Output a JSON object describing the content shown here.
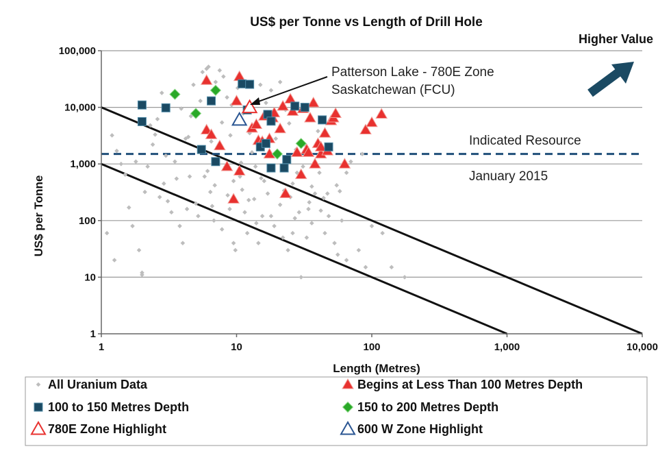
{
  "chart_data": {
    "type": "scatter",
    "title": "US$ per Tonne vs Length of Drill Hole",
    "xlabel": "Length (Metres)",
    "ylabel": "US$ per Tonne",
    "x_scale": "log",
    "y_scale": "log",
    "xlim": [
      1,
      10000
    ],
    "ylim": [
      1,
      100000
    ],
    "x_ticks": [
      "1",
      "10",
      "100",
      "1,000",
      "10,000"
    ],
    "x_tick_values": [
      1,
      10,
      100,
      1000,
      10000
    ],
    "y_ticks": [
      "1",
      "10",
      "100",
      "1,000",
      "10,000",
      "100,000"
    ],
    "y_tick_values": [
      1,
      10,
      100,
      1000,
      10000,
      100000
    ],
    "grid": "horizontal",
    "legend_position": "bottom",
    "reference_lines": [
      {
        "points": [
          [
            1,
            10000
          ],
          [
            10000,
            1
          ]
        ],
        "style": "solid"
      },
      {
        "points": [
          [
            1,
            1000
          ],
          [
            1000,
            1
          ]
        ],
        "style": "solid"
      }
    ],
    "indicated_resource": {
      "y": 1500,
      "label_top": "Indicated Resource",
      "label_bottom": "January 2015"
    },
    "higher_value": {
      "label": "Higher Value"
    },
    "annotation": {
      "line1": "Patterson Lake - 780E Zone",
      "line2": "Saskatchewan (FCU)",
      "target": [
        12.5,
        10000
      ]
    },
    "series": [
      {
        "name": "All Uranium Data",
        "marker": "diamond-small",
        "color": "#bdbdbd",
        "points": [
          [
            1.2,
            3200
          ],
          [
            1.3,
            1700
          ],
          [
            1.5,
            650
          ],
          [
            1.6,
            170
          ],
          [
            1.7,
            80
          ],
          [
            1.25,
            20
          ],
          [
            1.1,
            60
          ],
          [
            1.9,
            30
          ],
          [
            2,
            12
          ],
          [
            2,
            11
          ],
          [
            2.1,
            320
          ],
          [
            2.2,
            900
          ],
          [
            2.4,
            2200
          ],
          [
            2.5,
            3300
          ],
          [
            2.6,
            6200
          ],
          [
            2.8,
            18000
          ],
          [
            2.9,
            450
          ],
          [
            3.1,
            220
          ],
          [
            3.3,
            140
          ],
          [
            3.5,
            1100
          ],
          [
            3.6,
            550
          ],
          [
            3.8,
            80
          ],
          [
            4.0,
            40
          ],
          [
            4.2,
            2800
          ],
          [
            4.4,
            3000
          ],
          [
            4.6,
            7000
          ],
          [
            4.8,
            25000
          ],
          [
            5.0,
            200
          ],
          [
            5.2,
            120
          ],
          [
            5.4,
            13000
          ],
          [
            5.6,
            42000
          ],
          [
            5.8,
            600
          ],
          [
            6.0,
            48000
          ],
          [
            6.2,
            52000
          ],
          [
            6.4,
            320
          ],
          [
            6.6,
            180
          ],
          [
            6.8,
            100
          ],
          [
            7.0,
            28000
          ],
          [
            7.2,
            1200
          ],
          [
            7.5,
            45000
          ],
          [
            7.8,
            70
          ],
          [
            8.0,
            35000
          ],
          [
            8.3,
            900
          ],
          [
            8.6,
            280
          ],
          [
            8.9,
            160
          ],
          [
            9.2,
            11000
          ],
          [
            9.5,
            40
          ],
          [
            9.8,
            30
          ],
          [
            10.2,
            22000
          ],
          [
            10.6,
            600
          ],
          [
            11,
            350
          ],
          [
            11.5,
            140
          ],
          [
            12,
            60
          ],
          [
            12.5,
            3500
          ],
          [
            13,
            1600
          ],
          [
            13.5,
            240
          ],
          [
            14,
            90
          ],
          [
            14.5,
            40
          ],
          [
            15,
            25000
          ],
          [
            15.5,
            120
          ],
          [
            16,
            500
          ],
          [
            17,
            300
          ],
          [
            18,
            20000
          ],
          [
            19,
            80
          ],
          [
            20,
            1400
          ],
          [
            21,
            190
          ],
          [
            22,
            50
          ],
          [
            23,
            9000
          ],
          [
            24,
            30
          ],
          [
            25,
            260
          ],
          [
            26,
            450
          ],
          [
            27,
            110
          ],
          [
            28,
            700
          ],
          [
            29,
            140
          ],
          [
            30,
            10
          ],
          [
            32,
            2200
          ],
          [
            34,
            160
          ],
          [
            36,
            90
          ],
          [
            38,
            300
          ],
          [
            40,
            3800
          ],
          [
            42,
            150
          ],
          [
            45,
            60
          ],
          [
            48,
            120
          ],
          [
            50,
            1800
          ],
          [
            53,
            40
          ],
          [
            56,
            25
          ],
          [
            60,
            100
          ],
          [
            65,
            20
          ],
          [
            70,
            1100
          ],
          [
            80,
            30
          ],
          [
            90,
            15
          ],
          [
            100,
            80
          ],
          [
            120,
            60
          ],
          [
            140,
            15
          ],
          [
            175,
            10
          ],
          [
            3.0,
            1400
          ],
          [
            4.5,
            600
          ],
          [
            6.5,
            2500
          ],
          [
            7.8,
            5400
          ],
          [
            9.0,
            3200
          ],
          [
            11.2,
            7800
          ],
          [
            13.8,
            900
          ],
          [
            16.5,
            12000
          ],
          [
            19.5,
            2800
          ],
          [
            24.5,
            5200
          ],
          [
            27.5,
            1800
          ],
          [
            31,
            900
          ],
          [
            36,
            400
          ],
          [
            41,
            700
          ],
          [
            47,
            300
          ],
          [
            55,
            420
          ],
          [
            65,
            700
          ],
          [
            85,
            1500
          ],
          [
            2.3,
            4800
          ],
          [
            3.9,
            9500
          ],
          [
            5.3,
            1700
          ],
          [
            8.5,
            15000
          ],
          [
            14,
            4800
          ],
          [
            21,
            28000
          ],
          [
            6.1,
            750
          ],
          [
            9.5,
            500
          ],
          [
            12.3,
            230
          ],
          [
            18,
            120
          ],
          [
            26,
            60
          ],
          [
            33,
            50
          ],
          [
            44,
            250
          ],
          [
            58,
            330
          ],
          [
            1.8,
            1100
          ],
          [
            2.7,
            260
          ],
          [
            4.3,
            160
          ],
          [
            6.9,
            420
          ],
          [
            10.8,
            1050
          ],
          [
            15.2,
            560
          ],
          [
            22.5,
            340
          ],
          [
            34.5,
            210
          ],
          [
            1.4,
            1000
          ]
        ]
      },
      {
        "name": "Begins at Less Than 100 Metres Depth",
        "marker": "triangle-filled",
        "color": "#e8312f",
        "points": [
          [
            6,
            30000
          ],
          [
            10.5,
            35000
          ],
          [
            10,
            13000
          ],
          [
            6,
            4000
          ],
          [
            6.5,
            3300
          ],
          [
            7.5,
            2100
          ],
          [
            8.5,
            900
          ],
          [
            10.5,
            750
          ],
          [
            9.5,
            240
          ],
          [
            13,
            4300
          ],
          [
            14,
            5000
          ],
          [
            14.5,
            2600
          ],
          [
            15.5,
            2500
          ],
          [
            17.5,
            2800
          ],
          [
            17.5,
            1500
          ],
          [
            18.5,
            6500
          ],
          [
            19,
            8000
          ],
          [
            21,
            4200
          ],
          [
            22,
            10500
          ],
          [
            23,
            300
          ],
          [
            25,
            14000
          ],
          [
            28,
            1600
          ],
          [
            30,
            650
          ],
          [
            31,
            9500
          ],
          [
            33,
            1800
          ],
          [
            35,
            6500
          ],
          [
            37,
            12000
          ],
          [
            38,
            1000
          ],
          [
            40,
            2300
          ],
          [
            42,
            1500
          ],
          [
            45,
            3500
          ],
          [
            47,
            1700
          ],
          [
            50,
            5800
          ],
          [
            52,
            6500
          ],
          [
            54,
            7800
          ],
          [
            63,
            1000
          ],
          [
            90,
            4000
          ],
          [
            100,
            5400
          ],
          [
            118,
            7600
          ],
          [
            42,
            2000
          ],
          [
            34,
            1600
          ],
          [
            16,
            7000
          ],
          [
            26,
            8500
          ]
        ]
      },
      {
        "name": "100 to 150 Metres Depth",
        "marker": "square-filled",
        "color": "#1b4a63",
        "points": [
          [
            2,
            11000
          ],
          [
            2,
            5600
          ],
          [
            3,
            9800
          ],
          [
            5.5,
            1800
          ],
          [
            6.5,
            13000
          ],
          [
            7,
            1100
          ],
          [
            11,
            26000
          ],
          [
            12.5,
            25500
          ],
          [
            15,
            2000
          ],
          [
            16.5,
            2300
          ],
          [
            17,
            7500
          ],
          [
            18,
            5700
          ],
          [
            18,
            850
          ],
          [
            22.5,
            850
          ],
          [
            23.5,
            1200
          ],
          [
            27,
            10500
          ],
          [
            32,
            10000
          ],
          [
            43,
            6000
          ],
          [
            48,
            2000
          ],
          [
            12,
            9000
          ]
        ]
      },
      {
        "name": "150 to 200 Metres Depth",
        "marker": "diamond-filled",
        "color": "#2aa928",
        "points": [
          [
            3.5,
            17000
          ],
          [
            5,
            7800
          ],
          [
            7,
            20000
          ],
          [
            20,
            1500
          ],
          [
            30,
            2300
          ]
        ]
      },
      {
        "name": "780E Zone Highlight",
        "marker": "triangle-open",
        "color": "#e8312f",
        "points": [
          [
            12.5,
            10000
          ]
        ]
      },
      {
        "name": "600 W Zone Highlight",
        "marker": "triangle-open",
        "color": "#2a5592",
        "points": [
          [
            10.5,
            6000
          ]
        ]
      }
    ],
    "legend": [
      {
        "label": "All Uranium Data",
        "marker": "diamond-small",
        "color": "#bdbdbd"
      },
      {
        "label": "Begins at Less Than 100 Metres Depth",
        "marker": "triangle-filled",
        "color": "#e8312f"
      },
      {
        "label": "100 to 150 Metres Depth",
        "marker": "square-filled",
        "color": "#1b4a63"
      },
      {
        "label": "150 to 200 Metres Depth",
        "marker": "diamond-filled",
        "color": "#2aa928"
      },
      {
        "label": "780E Zone Highlight",
        "marker": "triangle-open",
        "color": "#e8312f"
      },
      {
        "label": "600 W Zone Highlight",
        "marker": "triangle-open",
        "color": "#2a5592"
      }
    ],
    "colors": {
      "grid": "#9a9a9a",
      "resource_line": "#1f4e79",
      "arrow": "#1b4a63"
    }
  }
}
